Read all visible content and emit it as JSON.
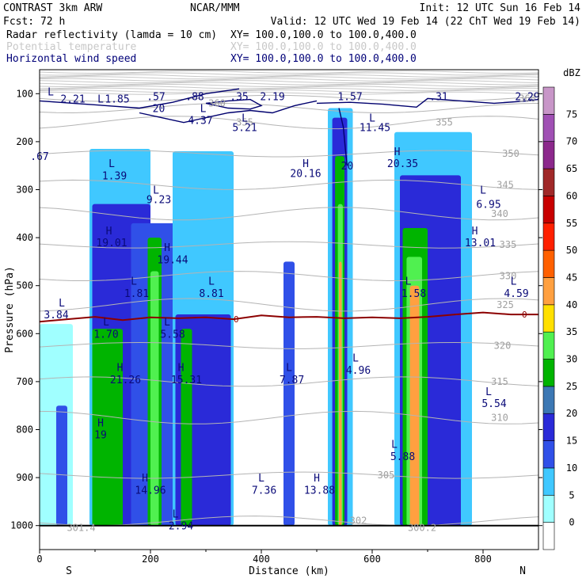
{
  "header": {
    "line1_left": "CONTRAST  3km ARW",
    "line1_mid": "NCAR/MMM",
    "line1_right": "Init: 12 UTC Sun 16 Feb 14",
    "fcst": "Fcst:   72 h",
    "valid": "Valid: 12 UTC Wed 19 Feb 14 (22 ChT Wed 19 Feb 14)",
    "fields": [
      {
        "label": "Radar reflectivity (lamda = 10 cm)",
        "range": "XY= 100.0,100.0 to 100.0,400.0",
        "color": "#000000"
      },
      {
        "label": "Potential temperature",
        "range": "XY= 100.0,100.0 to 100.0,400.0",
        "color": "#c8c8c8"
      },
      {
        "label": "Horizontal wind speed",
        "range": "XY= 100.0,100.0 to 100.0,400.0",
        "color": "#000078"
      }
    ]
  },
  "chart_data": {
    "type": "heatmap",
    "description_units": "dBZ",
    "xlabel": "Distance (km)",
    "ylabel": "Pressure (hPa)",
    "xlim": [
      0,
      900
    ],
    "ylim": [
      1050,
      50
    ],
    "x_ticks": [
      0,
      200,
      400,
      600,
      800
    ],
    "y_ticks": [
      100,
      200,
      300,
      400,
      500,
      600,
      700,
      800,
      900,
      1000
    ],
    "x_end_labels": {
      "left": "S",
      "right": "N"
    },
    "colorbar": {
      "unit": "dBZ",
      "levels": [
        0,
        5,
        10,
        15,
        20,
        25,
        30,
        35,
        40,
        45,
        50,
        55,
        60,
        65,
        70,
        75
      ],
      "colors": [
        "#ffffff",
        "#a0ffff",
        "#40c8ff",
        "#3050e8",
        "#2a2ad8",
        "#3c78b4",
        "#00b400",
        "#50f050",
        "#ffe000",
        "#ffa040",
        "#ff6000",
        "#ff2000",
        "#c80000",
        "#a02828",
        "#8c288c",
        "#a050b4",
        "#c896c8"
      ]
    },
    "reflectivity_cells": [
      {
        "x0": 0,
        "x1": 60,
        "p_top": 580,
        "p_bot": 1000,
        "level": 5
      },
      {
        "x0": 30,
        "x1": 50,
        "p_top": 750,
        "p_bot": 1000,
        "level": 15
      },
      {
        "x0": 90,
        "x1": 200,
        "p_top": 215,
        "p_bot": 1000,
        "level": 10
      },
      {
        "x0": 95,
        "x1": 200,
        "p_top": 330,
        "p_bot": 1000,
        "level": 20
      },
      {
        "x0": 95,
        "x1": 150,
        "p_top": 590,
        "p_bot": 1000,
        "level": 30
      },
      {
        "x0": 165,
        "x1": 260,
        "p_top": 370,
        "p_bot": 1000,
        "level": 15
      },
      {
        "x0": 195,
        "x1": 220,
        "p_top": 400,
        "p_bot": 1000,
        "level": 30
      },
      {
        "x0": 200,
        "x1": 215,
        "p_top": 470,
        "p_bot": 1000,
        "level": 35
      },
      {
        "x0": 240,
        "x1": 350,
        "p_top": 220,
        "p_bot": 1000,
        "level": 10
      },
      {
        "x0": 245,
        "x1": 345,
        "p_top": 560,
        "p_bot": 1000,
        "level": 20
      },
      {
        "x0": 255,
        "x1": 275,
        "p_top": 590,
        "p_bot": 1000,
        "level": 30
      },
      {
        "x0": 440,
        "x1": 460,
        "p_top": 450,
        "p_bot": 1000,
        "level": 15
      },
      {
        "x0": 520,
        "x1": 565,
        "p_top": 130,
        "p_bot": 1000,
        "level": 10
      },
      {
        "x0": 528,
        "x1": 555,
        "p_top": 150,
        "p_bot": 1000,
        "level": 20
      },
      {
        "x0": 533,
        "x1": 550,
        "p_top": 230,
        "p_bot": 1000,
        "level": 30
      },
      {
        "x0": 538,
        "x1": 547,
        "p_top": 330,
        "p_bot": 1000,
        "level": 35
      },
      {
        "x0": 540,
        "x1": 545,
        "p_top": 450,
        "p_bot": 1000,
        "level": 45
      },
      {
        "x0": 640,
        "x1": 780,
        "p_top": 180,
        "p_bot": 1000,
        "level": 10
      },
      {
        "x0": 650,
        "x1": 760,
        "p_top": 270,
        "p_bot": 1000,
        "level": 20
      },
      {
        "x0": 655,
        "x1": 700,
        "p_top": 380,
        "p_bot": 1000,
        "level": 30
      },
      {
        "x0": 662,
        "x1": 690,
        "p_top": 440,
        "p_bot": 1000,
        "level": 35
      },
      {
        "x0": 668,
        "x1": 685,
        "p_top": 500,
        "p_bot": 1000,
        "level": 45
      }
    ],
    "freezing_level_label": "0",
    "freezing_level": [
      [
        0,
        575
      ],
      [
        50,
        570
      ],
      [
        100,
        565
      ],
      [
        150,
        572
      ],
      [
        200,
        566
      ],
      [
        250,
        568
      ],
      [
        300,
        566
      ],
      [
        350,
        570
      ],
      [
        400,
        562
      ],
      [
        450,
        566
      ],
      [
        500,
        565
      ],
      [
        550,
        568
      ],
      [
        600,
        566
      ],
      [
        650,
        568
      ],
      [
        700,
        565
      ],
      [
        750,
        560
      ],
      [
        800,
        556
      ],
      [
        850,
        560
      ],
      [
        900,
        560
      ]
    ],
    "theta_labels": [
      {
        "x": 320,
        "p": 120,
        "text": "360"
      },
      {
        "x": 880,
        "p": 110,
        "text": "360"
      },
      {
        "x": 370,
        "p": 160,
        "text": "355"
      },
      {
        "x": 730,
        "p": 160,
        "text": "355"
      },
      {
        "x": 850,
        "p": 225,
        "text": "350"
      },
      {
        "x": 840,
        "p": 290,
        "text": "345"
      },
      {
        "x": 830,
        "p": 350,
        "text": "340"
      },
      {
        "x": 845,
        "p": 415,
        "text": "335"
      },
      {
        "x": 845,
        "p": 480,
        "text": "330"
      },
      {
        "x": 840,
        "p": 540,
        "text": "325"
      },
      {
        "x": 835,
        "p": 625,
        "text": "320"
      },
      {
        "x": 830,
        "p": 700,
        "text": "315"
      },
      {
        "x": 830,
        "p": 775,
        "text": "310"
      },
      {
        "x": 625,
        "p": 895,
        "text": "305"
      },
      {
        "x": 575,
        "p": 990,
        "text": "302"
      },
      {
        "x": 75,
        "p": 1005,
        "text": "301.4"
      },
      {
        "x": 690,
        "p": 1005,
        "text": "300.2"
      }
    ],
    "wind_labels": [
      {
        "x": 20,
        "p": 95,
        "text": "L"
      },
      {
        "x": 60,
        "p": 110,
        "text": "2.21"
      },
      {
        "x": 110,
        "p": 110,
        "text": "L"
      },
      {
        "x": 140,
        "p": 110,
        "text": "1.85"
      },
      {
        "x": 210,
        "p": 105,
        "text": ".57"
      },
      {
        "x": 280,
        "p": 105,
        "text": ".88"
      },
      {
        "x": 360,
        "p": 105,
        "text": ".35"
      },
      {
        "x": 420,
        "p": 105,
        "text": "2.19"
      },
      {
        "x": 560,
        "p": 105,
        "text": "1.57"
      },
      {
        "x": 720,
        "p": 105,
        "text": ".31"
      },
      {
        "x": 880,
        "p": 105,
        "text": "2.29"
      },
      {
        "x": 215,
        "p": 130,
        "text": "20"
      },
      {
        "x": 295,
        "p": 130,
        "text": "L"
      },
      {
        "x": 290,
        "p": 155,
        "text": "4.37"
      },
      {
        "x": 370,
        "p": 150,
        "text": "L"
      },
      {
        "x": 370,
        "p": 170,
        "text": "5.21"
      },
      {
        "x": 600,
        "p": 150,
        "text": "L"
      },
      {
        "x": 605,
        "p": 170,
        "text": "11.45"
      },
      {
        "x": 0,
        "p": 230,
        "text": ".67"
      },
      {
        "x": 130,
        "p": 245,
        "text": "L"
      },
      {
        "x": 135,
        "p": 270,
        "text": "1.39"
      },
      {
        "x": 480,
        "p": 245,
        "text": "H"
      },
      {
        "x": 480,
        "p": 265,
        "text": "20.16"
      },
      {
        "x": 555,
        "p": 250,
        "text": "20"
      },
      {
        "x": 645,
        "p": 220,
        "text": "H"
      },
      {
        "x": 655,
        "p": 245,
        "text": "20.35"
      },
      {
        "x": 210,
        "p": 300,
        "text": "L"
      },
      {
        "x": 215,
        "p": 320,
        "text": "9.23"
      },
      {
        "x": 800,
        "p": 300,
        "text": "L"
      },
      {
        "x": 810,
        "p": 330,
        "text": "6.95"
      },
      {
        "x": 125,
        "p": 385,
        "text": "H"
      },
      {
        "x": 130,
        "p": 410,
        "text": "19.01"
      },
      {
        "x": 785,
        "p": 385,
        "text": "H"
      },
      {
        "x": 795,
        "p": 410,
        "text": "13.01"
      },
      {
        "x": 230,
        "p": 420,
        "text": "H"
      },
      {
        "x": 240,
        "p": 445,
        "text": "19.44"
      },
      {
        "x": 170,
        "p": 490,
        "text": "L"
      },
      {
        "x": 175,
        "p": 515,
        "text": "1.81"
      },
      {
        "x": 310,
        "p": 490,
        "text": "L"
      },
      {
        "x": 310,
        "p": 515,
        "text": "8.81"
      },
      {
        "x": 665,
        "p": 490,
        "text": "L"
      },
      {
        "x": 675,
        "p": 515,
        "text": "1.58"
      },
      {
        "x": 855,
        "p": 490,
        "text": "L"
      },
      {
        "x": 860,
        "p": 515,
        "text": "4.59"
      },
      {
        "x": 40,
        "p": 535,
        "text": "L"
      },
      {
        "x": 30,
        "p": 560,
        "text": "3.84"
      },
      {
        "x": 120,
        "p": 575,
        "text": "L"
      },
      {
        "x": 120,
        "p": 600,
        "text": "1.70"
      },
      {
        "x": 230,
        "p": 575,
        "text": "L"
      },
      {
        "x": 240,
        "p": 600,
        "text": "5.58"
      },
      {
        "x": 570,
        "p": 650,
        "text": "L"
      },
      {
        "x": 575,
        "p": 675,
        "text": "4.96"
      },
      {
        "x": 145,
        "p": 670,
        "text": "H"
      },
      {
        "x": 155,
        "p": 695,
        "text": "21.26"
      },
      {
        "x": 255,
        "p": 670,
        "text": "H"
      },
      {
        "x": 265,
        "p": 695,
        "text": "15.31"
      },
      {
        "x": 450,
        "p": 670,
        "text": "L"
      },
      {
        "x": 455,
        "p": 695,
        "text": "7.87"
      },
      {
        "x": 810,
        "p": 720,
        "text": "L"
      },
      {
        "x": 820,
        "p": 745,
        "text": "5.54"
      },
      {
        "x": 110,
        "p": 785,
        "text": "H"
      },
      {
        "x": 110,
        "p": 810,
        "text": "19"
      },
      {
        "x": 640,
        "p": 830,
        "text": "L"
      },
      {
        "x": 655,
        "p": 855,
        "text": "5.88"
      },
      {
        "x": 190,
        "p": 900,
        "text": "H"
      },
      {
        "x": 200,
        "p": 925,
        "text": "14.96"
      },
      {
        "x": 400,
        "p": 900,
        "text": "L"
      },
      {
        "x": 405,
        "p": 925,
        "text": "7.36"
      },
      {
        "x": 500,
        "p": 900,
        "text": "H"
      },
      {
        "x": 505,
        "p": 925,
        "text": "13.88"
      },
      {
        "x": 245,
        "p": 975,
        "text": "L"
      },
      {
        "x": 255,
        "p": 1000,
        "text": "2.94"
      }
    ]
  }
}
